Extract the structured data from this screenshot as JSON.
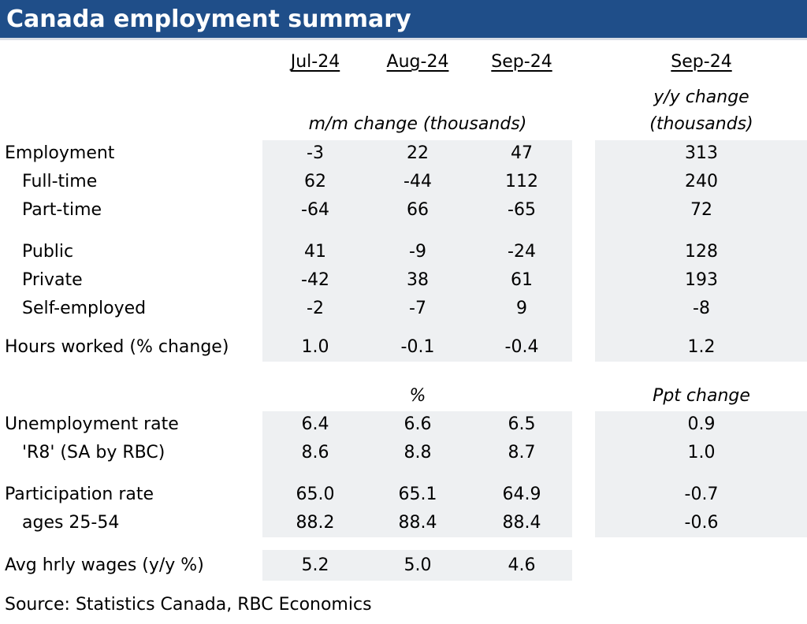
{
  "title": "Canada employment summary",
  "colors": {
    "header_bg": "#1f4e89",
    "header_text": "#ffffff",
    "shade": "#eef0f2"
  },
  "columns": [
    "Jul-24",
    "Aug-24",
    "Sep-24"
  ],
  "yy_column": "Sep-24",
  "mm_subheader": "m/m change (thousands)",
  "yy_subheader": [
    "y/y change",
    "(thousands)"
  ],
  "rows_a": [
    {
      "label": "Employment",
      "values": [
        "-3",
        "22",
        "47"
      ],
      "yy": "313"
    },
    {
      "label": "Full-time",
      "values": [
        "62",
        "-44",
        "112"
      ],
      "yy": "240"
    },
    {
      "label": "Part-time",
      "values": [
        "-64",
        "66",
        "-65"
      ],
      "yy": "72"
    },
    {
      "label": "Public",
      "values": [
        "41",
        "-9",
        "-24"
      ],
      "yy": "128"
    },
    {
      "label": "Private",
      "values": [
        "-42",
        "38",
        "61"
      ],
      "yy": "193"
    },
    {
      "label": "Self-employed",
      "values": [
        "-2",
        "-7",
        "9"
      ],
      "yy": "-8"
    },
    {
      "label": "Hours worked (% change)",
      "values": [
        "1.0",
        "-0.1",
        "-0.4"
      ],
      "yy": "1.2"
    }
  ],
  "pct_subheader": "%",
  "ppt_subheader": "Ppt change",
  "rows_b": [
    {
      "label": "Unemployment rate",
      "values": [
        "6.4",
        "6.6",
        "6.5"
      ],
      "yy": "0.9"
    },
    {
      "label": "'R8' (SA by RBC)",
      "values": [
        "8.6",
        "8.8",
        "8.7"
      ],
      "yy": "1.0"
    },
    {
      "label": "Participation rate",
      "values": [
        "65.0",
        "65.1",
        "64.9"
      ],
      "yy": "-0.7"
    },
    {
      "label": "ages 25-54",
      "values": [
        "88.2",
        "88.4",
        "88.4"
      ],
      "yy": "-0.6"
    },
    {
      "label": "Avg hrly wages (y/y %)",
      "values": [
        "5.2",
        "5.0",
        "4.6"
      ]
    }
  ],
  "source": "Source:  Statistics Canada, RBC Economics"
}
